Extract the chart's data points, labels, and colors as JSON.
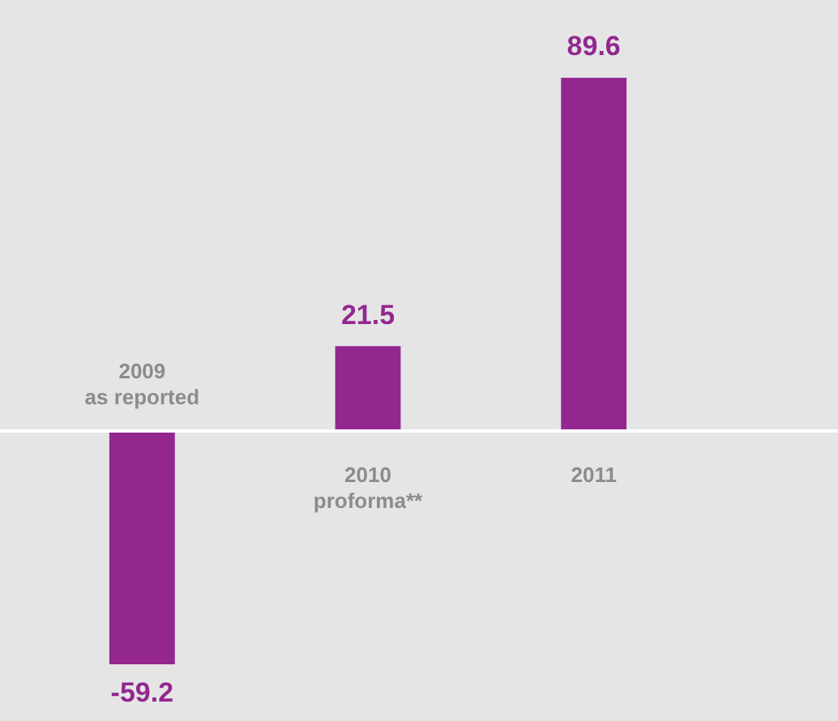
{
  "chart_data": {
    "type": "bar",
    "categories": [
      "2009 as reported",
      "2010 proforma**",
      "2011"
    ],
    "values": [
      -59.2,
      21.5,
      89.6
    ],
    "color": "#93278f",
    "data_labels": true
  }
}
